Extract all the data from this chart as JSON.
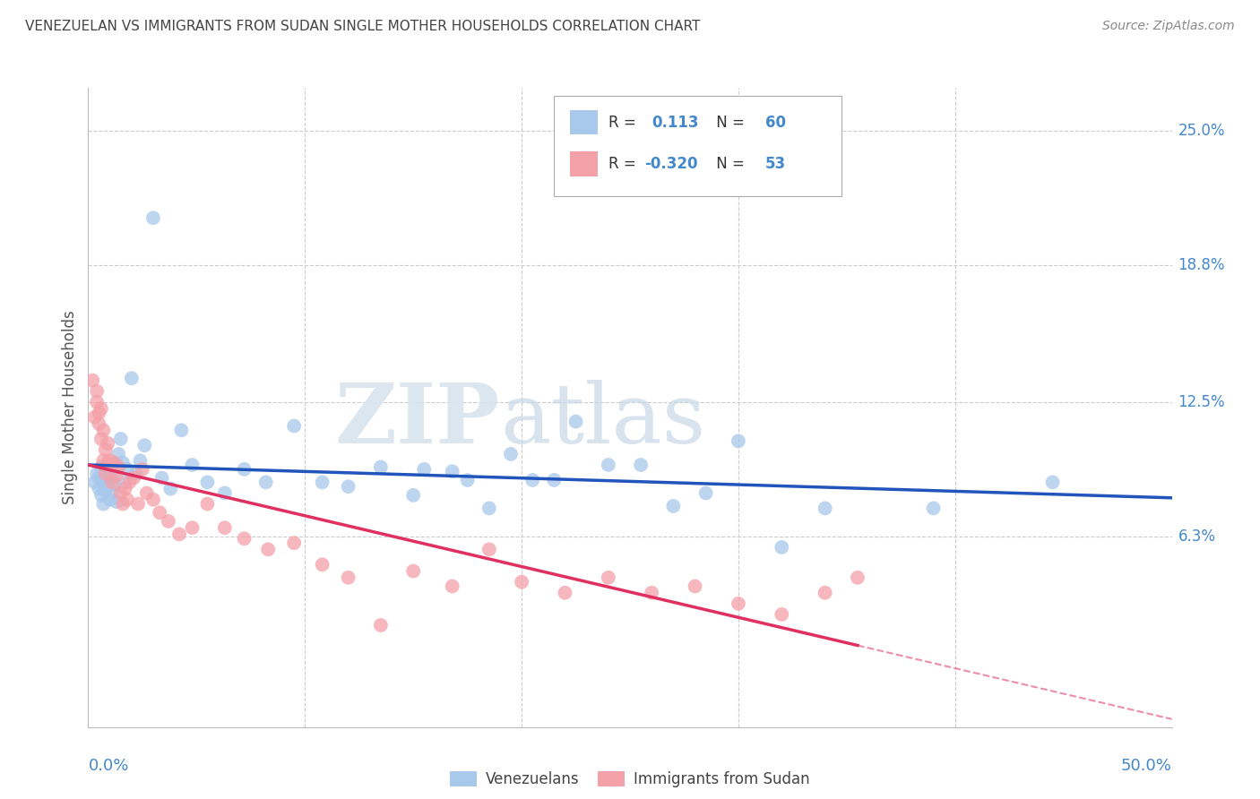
{
  "title": "VENEZUELAN VS IMMIGRANTS FROM SUDAN SINGLE MOTHER HOUSEHOLDS CORRELATION CHART",
  "source": "Source: ZipAtlas.com",
  "ylabel": "Single Mother Households",
  "ytick_labels": [
    "6.3%",
    "12.5%",
    "18.8%",
    "25.0%"
  ],
  "ytick_values": [
    0.063,
    0.125,
    0.188,
    0.25
  ],
  "xlim": [
    0.0,
    0.5
  ],
  "ylim": [
    -0.025,
    0.27
  ],
  "R_venezuelan": "0.113",
  "N_venezuelan": "60",
  "R_sudan": "-0.320",
  "N_sudan": "53",
  "blue_color": "#A8C8EC",
  "pink_color": "#F4A0A8",
  "line_blue": "#2255BB",
  "line_pink": "#E03060",
  "background_color": "#FFFFFF",
  "grid_color": "#CCCCCC",
  "title_color": "#444444",
  "axis_label_color": "#4488CC",
  "venezuelan_x": [
    0.003,
    0.004,
    0.005,
    0.005,
    0.006,
    0.006,
    0.007,
    0.007,
    0.008,
    0.008,
    0.009,
    0.009,
    0.01,
    0.01,
    0.011,
    0.011,
    0.012,
    0.012,
    0.013,
    0.013,
    0.014,
    0.015,
    0.016,
    0.017,
    0.018,
    0.02,
    0.022,
    0.024,
    0.026,
    0.03,
    0.034,
    0.038,
    0.043,
    0.048,
    0.055,
    0.063,
    0.072,
    0.082,
    0.095,
    0.108,
    0.12,
    0.135,
    0.15,
    0.168,
    0.185,
    0.205,
    0.225,
    0.255,
    0.285,
    0.32,
    0.155,
    0.175,
    0.195,
    0.215,
    0.24,
    0.27,
    0.3,
    0.34,
    0.39,
    0.445
  ],
  "venezuelan_y": [
    0.088,
    0.092,
    0.085,
    0.09,
    0.082,
    0.095,
    0.078,
    0.088,
    0.084,
    0.091,
    0.086,
    0.093,
    0.08,
    0.089,
    0.094,
    0.083,
    0.087,
    0.092,
    0.079,
    0.095,
    0.101,
    0.108,
    0.097,
    0.088,
    0.094,
    0.136,
    0.092,
    0.098,
    0.105,
    0.21,
    0.09,
    0.085,
    0.112,
    0.096,
    0.088,
    0.083,
    0.094,
    0.088,
    0.114,
    0.088,
    0.086,
    0.095,
    0.082,
    0.093,
    0.076,
    0.089,
    0.116,
    0.096,
    0.083,
    0.058,
    0.094,
    0.089,
    0.101,
    0.089,
    0.096,
    0.077,
    0.107,
    0.076,
    0.076,
    0.088
  ],
  "sudan_x": [
    0.002,
    0.003,
    0.004,
    0.004,
    0.005,
    0.005,
    0.006,
    0.006,
    0.007,
    0.007,
    0.008,
    0.008,
    0.009,
    0.009,
    0.01,
    0.011,
    0.012,
    0.013,
    0.014,
    0.015,
    0.016,
    0.017,
    0.018,
    0.019,
    0.021,
    0.023,
    0.025,
    0.027,
    0.03,
    0.033,
    0.037,
    0.042,
    0.048,
    0.055,
    0.063,
    0.072,
    0.083,
    0.095,
    0.108,
    0.12,
    0.135,
    0.15,
    0.168,
    0.185,
    0.2,
    0.22,
    0.24,
    0.26,
    0.28,
    0.3,
    0.32,
    0.34,
    0.355
  ],
  "sudan_y": [
    0.135,
    0.118,
    0.125,
    0.13,
    0.12,
    0.115,
    0.108,
    0.122,
    0.098,
    0.112,
    0.092,
    0.103,
    0.097,
    0.106,
    0.098,
    0.088,
    0.097,
    0.091,
    0.095,
    0.083,
    0.078,
    0.085,
    0.08,
    0.088,
    0.09,
    0.078,
    0.094,
    0.083,
    0.08,
    0.074,
    0.07,
    0.064,
    0.067,
    0.078,
    0.067,
    0.062,
    0.057,
    0.06,
    0.05,
    0.044,
    0.022,
    0.047,
    0.04,
    0.057,
    0.042,
    0.037,
    0.044,
    0.037,
    0.04,
    0.032,
    0.027,
    0.037,
    0.044
  ]
}
